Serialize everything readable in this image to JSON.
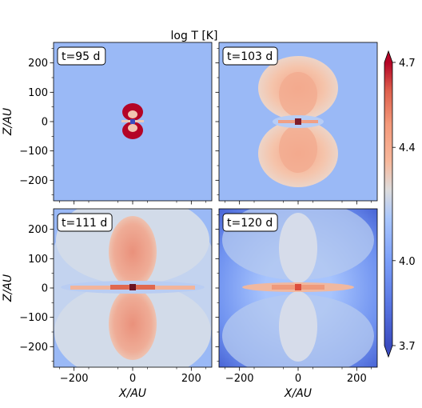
{
  "chart_data": {
    "type": "heatmap",
    "title": "log  T [K]",
    "xlabel": "X/AU",
    "ylabel": "Z/AU",
    "xlim": [
      -270,
      270
    ],
    "ylim": [
      -270,
      270
    ],
    "x_ticks": [
      -200,
      0,
      200
    ],
    "y_ticks": [
      200,
      100,
      0,
      -100,
      -200
    ],
    "colorbar": {
      "min": 3.7,
      "max": 4.7,
      "ticks": [
        4.7,
        4.4,
        4.0,
        3.7
      ],
      "colormap": "coolwarm",
      "extend": "both"
    },
    "grid": false,
    "panels": [
      {
        "label": "t=95 d",
        "bubble_extent_au": 40,
        "background_log_T": 3.98
      },
      {
        "label": "t=103 d",
        "bubble_extent_au": 200,
        "background_log_T": 3.98
      },
      {
        "label": "t=111 d",
        "bubble_extent_au": 270,
        "background_log_T": 3.95
      },
      {
        "label": "t=120 d",
        "bubble_extent_au": 270,
        "background_log_T": 3.85
      }
    ]
  },
  "tick_labels": {
    "x": [
      "−200",
      "0",
      "200"
    ],
    "y": [
      "200",
      "100",
      "0",
      "−100",
      "−200"
    ],
    "colorbar": [
      "4.7",
      "4.4",
      "4.0",
      "3.7"
    ]
  },
  "colors": {
    "deep_red": "#b40426",
    "light_red": "#f08a6c",
    "background_blue": "#9ab9f6",
    "deep_blue": "#3b4cc0"
  }
}
